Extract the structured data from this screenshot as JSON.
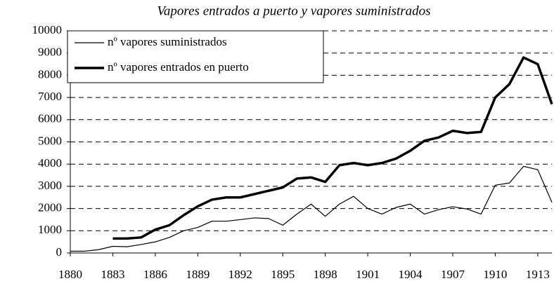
{
  "chart_data": {
    "type": "line",
    "title": "Vapores entrados a puerto y vapores suministrados",
    "x": [
      1880,
      1881,
      1882,
      1883,
      1884,
      1885,
      1886,
      1887,
      1888,
      1889,
      1890,
      1891,
      1892,
      1893,
      1894,
      1895,
      1896,
      1897,
      1898,
      1899,
      1900,
      1901,
      1902,
      1903,
      1904,
      1905,
      1906,
      1907,
      1908,
      1909,
      1910,
      1911,
      1912,
      1913,
      1914
    ],
    "series": [
      {
        "name": "nº vapores suministrados",
        "color": "#000000",
        "width": 1.2,
        "values": [
          80,
          80,
          150,
          300,
          280,
          380,
          500,
          700,
          1000,
          1150,
          1430,
          1430,
          1500,
          1580,
          1550,
          1250,
          1750,
          2200,
          1650,
          2200,
          2550,
          2000,
          1750,
          2050,
          2200,
          1750,
          1950,
          2080,
          1980,
          1750,
          3050,
          3150,
          3900,
          3750,
          2280
        ]
      },
      {
        "name": "nº vapores entrados en puerto",
        "color": "#000000",
        "width": 3.5,
        "values": [
          null,
          null,
          null,
          650,
          650,
          700,
          1050,
          1250,
          1700,
          2100,
          2400,
          2500,
          2500,
          2650,
          2800,
          2950,
          3350,
          3400,
          3200,
          3950,
          4050,
          3950,
          4050,
          4250,
          4600,
          5050,
          5200,
          5500,
          5400,
          5450,
          7000,
          7600,
          8800,
          8500,
          6700
        ]
      }
    ],
    "xlim": [
      1880,
      1914
    ],
    "xticks": [
      1880,
      1883,
      1886,
      1889,
      1892,
      1895,
      1898,
      1901,
      1904,
      1907,
      1910,
      1913
    ],
    "ylim": [
      0,
      10000
    ],
    "yticks": [
      0,
      1000,
      2000,
      3000,
      4000,
      5000,
      6000,
      7000,
      8000,
      9000,
      10000
    ],
    "grid": true,
    "legend": "upper left"
  }
}
